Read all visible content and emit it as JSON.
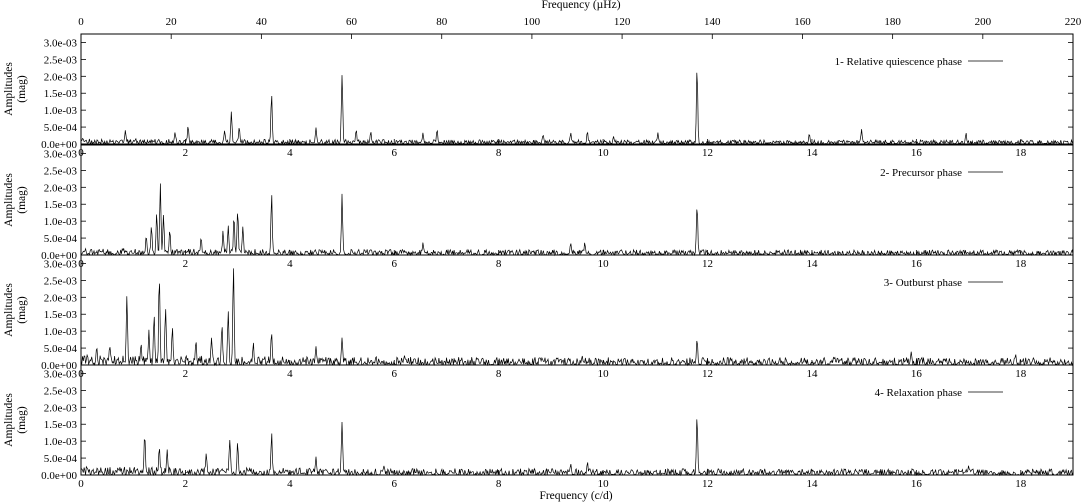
{
  "chart_data": {
    "type": "line",
    "top_axis": {
      "label": "Frequency (µHz)",
      "range": [
        0,
        220
      ],
      "ticks": [
        "0",
        "20",
        "40",
        "60",
        "80",
        "100",
        "120",
        "140",
        "160",
        "180",
        "200",
        "220"
      ]
    },
    "bottom_axis": {
      "label": "Frequency (c/d)",
      "range": [
        0,
        19
      ],
      "ticks": [
        "0",
        "2",
        "4",
        "6",
        "8",
        "10",
        "12",
        "14",
        "16",
        "18"
      ]
    },
    "y_axis": {
      "label_line1": "Amplitudes",
      "label_line2": "(mag)",
      "range": [
        0,
        0.00325
      ],
      "ticks": [
        "0.0e+00",
        "5.0e-04",
        "1.0e-03",
        "1.5e-03",
        "2.0e-03",
        "2.5e-03",
        "3.0e-03"
      ]
    },
    "panels": [
      {
        "legend": "1- Relative quiescence phase",
        "noise": 0.00012,
        "peaks": [
          [
            0.85,
            0.00045
          ],
          [
            1.8,
            0.0004
          ],
          [
            2.05,
            0.0006
          ],
          [
            2.75,
            0.00045
          ],
          [
            2.88,
            0.0011
          ],
          [
            3.03,
            0.00055
          ],
          [
            3.65,
            0.0017
          ],
          [
            4.5,
            0.00055
          ],
          [
            5.0,
            0.0024
          ],
          [
            5.27,
            0.00045
          ],
          [
            5.55,
            0.0004
          ],
          [
            6.55,
            0.00035
          ],
          [
            6.82,
            0.00045
          ],
          [
            8.85,
            0.0003
          ],
          [
            9.38,
            0.00035
          ],
          [
            9.7,
            0.0004
          ],
          [
            10.2,
            0.00025
          ],
          [
            11.05,
            0.00035
          ],
          [
            11.8,
            0.0025
          ],
          [
            13.95,
            0.00035
          ],
          [
            14.95,
            0.00045
          ],
          [
            16.95,
            0.00035
          ]
        ]
      },
      {
        "legend": "2- Precursor phase",
        "noise": 0.00015,
        "peaks": [
          [
            1.25,
            0.0006
          ],
          [
            1.35,
            0.0009
          ],
          [
            1.45,
            0.0013
          ],
          [
            1.52,
            0.0022
          ],
          [
            1.58,
            0.0012
          ],
          [
            1.7,
            0.00085
          ],
          [
            2.3,
            0.00055
          ],
          [
            2.72,
            0.00075
          ],
          [
            2.82,
            0.0009
          ],
          [
            2.93,
            0.0012
          ],
          [
            3.0,
            0.0015
          ],
          [
            3.1,
            0.0009
          ],
          [
            3.65,
            0.0019
          ],
          [
            5.0,
            0.0019
          ],
          [
            6.55,
            0.0004
          ],
          [
            9.38,
            0.0004
          ],
          [
            9.65,
            0.0004
          ],
          [
            11.8,
            0.0017
          ]
        ]
      },
      {
        "legend": "3- Outburst phase",
        "noise": 0.00022,
        "peaks": [
          [
            0.3,
            0.0006
          ],
          [
            0.55,
            0.0006
          ],
          [
            0.88,
            0.0023
          ],
          [
            1.15,
            0.0007
          ],
          [
            1.3,
            0.0011
          ],
          [
            1.4,
            0.0016
          ],
          [
            1.5,
            0.0028
          ],
          [
            1.62,
            0.0019
          ],
          [
            1.75,
            0.0012
          ],
          [
            2.2,
            0.0008
          ],
          [
            2.5,
            0.0009
          ],
          [
            2.7,
            0.0013
          ],
          [
            2.82,
            0.0018
          ],
          [
            2.92,
            0.0032
          ],
          [
            3.3,
            0.0007
          ],
          [
            3.65,
            0.0011
          ],
          [
            4.5,
            0.0006
          ],
          [
            5.0,
            0.0009
          ],
          [
            6.2,
            0.0003
          ],
          [
            9.6,
            0.0003
          ],
          [
            11.8,
            0.0009
          ],
          [
            15.9,
            0.0004
          ],
          [
            17.9,
            0.00035
          ]
        ]
      },
      {
        "legend": "4- Relaxation phase",
        "noise": 0.00018,
        "peaks": [
          [
            1.22,
            0.0014
          ],
          [
            1.5,
            0.0009
          ],
          [
            1.65,
            0.0008
          ],
          [
            2.4,
            0.0007
          ],
          [
            2.85,
            0.0012
          ],
          [
            3.0,
            0.001
          ],
          [
            3.65,
            0.0013
          ],
          [
            4.5,
            0.0006
          ],
          [
            5.0,
            0.0018
          ],
          [
            5.8,
            0.0003
          ],
          [
            9.38,
            0.00035
          ],
          [
            9.7,
            0.0004
          ],
          [
            11.8,
            0.0019
          ],
          [
            17.0,
            0.0003
          ]
        ]
      }
    ]
  }
}
